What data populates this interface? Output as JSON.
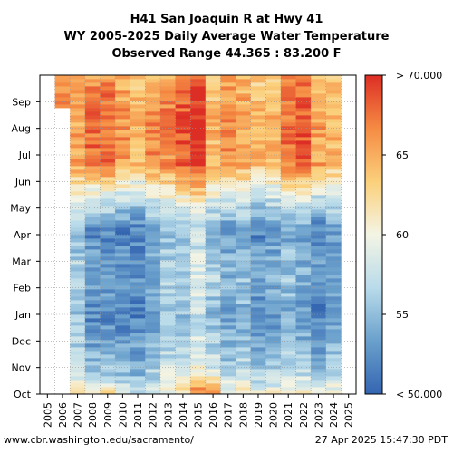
{
  "chart_data": {
    "type": "heatmap",
    "title_lines": [
      "H41 San Joaquin R at Hwy 41",
      "WY 2005-2025 Daily Average Water Temperature",
      "Observed Range 44.365 : 83.200 F"
    ],
    "x_categories": [
      "2005",
      "2006",
      "2007",
      "2008",
      "2009",
      "2010",
      "2011",
      "2012",
      "2013",
      "2014",
      "2015",
      "2016",
      "2017",
      "2018",
      "2019",
      "2020",
      "2021",
      "2022",
      "2023",
      "2024",
      "2025"
    ],
    "y_months": [
      "Oct",
      "Nov",
      "Dec",
      "Jan",
      "Feb",
      "Mar",
      "Apr",
      "May",
      "Jun",
      "Jul",
      "Aug",
      "Sep"
    ],
    "colorbar": {
      "min": 50,
      "max": 70,
      "tick_labels": [
        "> 70.000",
        "65",
        "60",
        "55",
        "< 50.000"
      ],
      "tick_values": [
        70,
        65,
        60,
        55,
        50
      ],
      "colors": [
        "#3465b1",
        "#6aa0cc",
        "#b9dbea",
        "#f4f4e4",
        "#fbd07b",
        "#f58b43",
        "#dd2e25"
      ]
    },
    "grid": true,
    "year_profiles": [
      {
        "year": "2005",
        "oct": null,
        "winter": null,
        "summer": null,
        "start": 0.93
      },
      {
        "year": "2006",
        "oct": null,
        "winter": null,
        "summer": 67,
        "start": 0.9
      },
      {
        "year": "2007",
        "oct": 61,
        "winter": 55,
        "summer": 65,
        "start": 0.0
      },
      {
        "year": "2008",
        "oct": 60,
        "winter": 52,
        "summer": 67,
        "start": 0.0
      },
      {
        "year": "2009",
        "oct": 62,
        "winter": 52,
        "summer": 67.5,
        "start": 0.0
      },
      {
        "year": "2010",
        "oct": 59,
        "winter": 51.5,
        "summer": 65.5,
        "start": 0.0
      },
      {
        "year": "2011",
        "oct": 56,
        "winter": 51.5,
        "summer": 64,
        "start": 0.0
      },
      {
        "year": "2012",
        "oct": 58,
        "winter": 53,
        "summer": 66,
        "start": 0.0
      },
      {
        "year": "2013",
        "oct": 60,
        "winter": 55,
        "summer": 66,
        "start": 0.0
      },
      {
        "year": "2014",
        "oct": 62,
        "winter": 55,
        "summer": 68,
        "start": 0.0
      },
      {
        "year": "2015",
        "oct": 68,
        "winter": 57,
        "summer": 70,
        "start": 0.0
      },
      {
        "year": "2016",
        "oct": 66,
        "winter": 55,
        "summer": 64,
        "start": 0.0
      },
      {
        "year": "2017",
        "oct": 60,
        "winter": 53,
        "summer": 66,
        "start": 0.0
      },
      {
        "year": "2018",
        "oct": 61,
        "winter": 54,
        "summer": 65,
        "start": 0.0
      },
      {
        "year": "2019",
        "oct": 60,
        "winter": 52,
        "summer": 64,
        "start": 0.0
      },
      {
        "year": "2020",
        "oct": 60,
        "winter": 53,
        "summer": 64,
        "start": 0.0
      },
      {
        "year": "2021",
        "oct": 61,
        "winter": 54,
        "summer": 67,
        "start": 0.0
      },
      {
        "year": "2022",
        "oct": 62,
        "winter": 53,
        "summer": 68,
        "start": 0.0
      },
      {
        "year": "2023",
        "oct": 59,
        "winter": 51.5,
        "summer": 65,
        "start": 0.0
      },
      {
        "year": "2024",
        "oct": 60,
        "winter": 53,
        "summer": 64,
        "start": 0.0
      },
      {
        "year": "2025",
        "oct": null,
        "winter": null,
        "summer": null,
        "start": 1.0
      }
    ]
  },
  "footer": {
    "url": "www.cbr.washington.edu/sacramento/",
    "timestamp": "27 Apr 2025 15:47:30 PDT"
  }
}
